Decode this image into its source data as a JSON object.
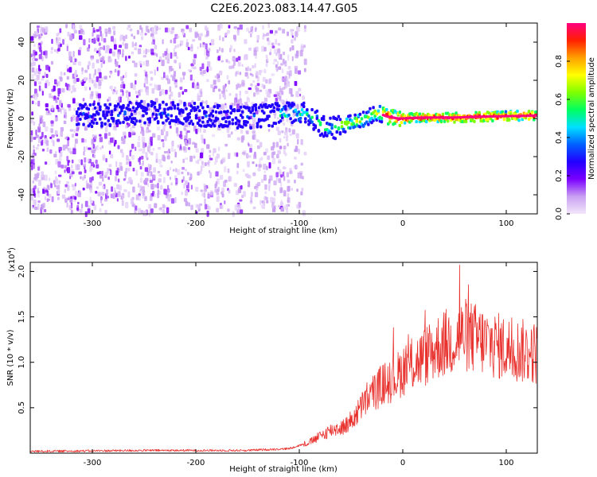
{
  "title": "C2E6.2023.083.14.47.G05",
  "chart_data": [
    {
      "type": "heatmap",
      "xlabel": "Height of straight line (km)",
      "ylabel": "Frequency (Hz)",
      "xlim": [
        -360,
        130
      ],
      "ylim": [
        -50,
        50
      ],
      "xticks": [
        -300,
        -200,
        -100,
        0,
        100
      ],
      "yticks": [
        -40,
        -20,
        0,
        20,
        40
      ],
      "colorbar": {
        "label": "Normalized spectral amplitude",
        "range": [
          0.0,
          1.0
        ],
        "ticks": [
          0.0,
          0.2,
          0.4,
          0.6,
          0.8
        ],
        "tick_labels": [
          "0.0",
          "0.2",
          "0.4",
          "0.6",
          "0.8"
        ],
        "colormap": [
          "#f3e6fb",
          "#c9a0f2",
          "#7b00ff",
          "#2200ff",
          "#0060ff",
          "#00e0ff",
          "#00ff60",
          "#80ff00",
          "#ffff00",
          "#ffa000",
          "#ff2000",
          "#ff0080"
        ]
      },
      "ridge": {
        "x": [
          -300,
          -250,
          -200,
          -160,
          -120,
          -100,
          -85,
          -75,
          -65,
          -55,
          -40,
          -25,
          -15,
          -5,
          0,
          20,
          50,
          80,
          130
        ],
        "y": [
          1.5,
          3,
          2,
          0.5,
          2,
          3,
          0,
          -6,
          -5,
          -3,
          -1,
          3,
          1,
          0,
          0,
          0.5,
          0.5,
          1,
          1.5
        ]
      },
      "noise_extent_km": -110
    },
    {
      "type": "line",
      "xlabel": "Height of straight line (km)",
      "ylabel": "SNR (10 * v/v)",
      "y_multiplier": "(x10",
      "y_multiplier_exp": "4",
      "y_multiplier_close": ")",
      "xlim": [
        -360,
        130
      ],
      "ylim": [
        0,
        2.1
      ],
      "xticks": [
        -300,
        -200,
        -100,
        0,
        100
      ],
      "yticks": [
        0.5,
        1.0,
        1.5,
        2.0
      ],
      "ytick_labels": [
        "0.5",
        "1.0",
        "1.5",
        "2.0"
      ],
      "color": "#e8302c",
      "envelope": {
        "x": [
          -360,
          -250,
          -150,
          -110,
          -90,
          -70,
          -55,
          -45,
          -35,
          -20,
          -5,
          0,
          20,
          35,
          50,
          60,
          80,
          100,
          130
        ],
        "y": [
          0.02,
          0.03,
          0.03,
          0.05,
          0.12,
          0.25,
          0.3,
          0.42,
          0.6,
          0.75,
          0.85,
          0.92,
          1.05,
          1.18,
          1.25,
          1.3,
          1.22,
          1.15,
          1.1
        ]
      },
      "peak": {
        "x": 55,
        "y": 2.07
      }
    }
  ]
}
